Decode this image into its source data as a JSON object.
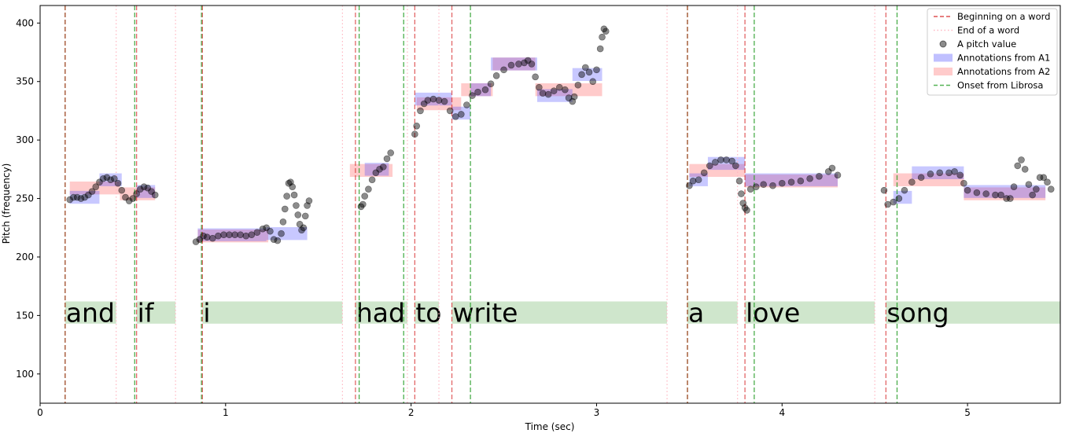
{
  "chart_data": {
    "type": "scatter",
    "xlabel": "Time (sec)",
    "ylabel": "Pitch (frequency)",
    "xlim": [
      0,
      5.5
    ],
    "ylim": [
      75,
      415
    ],
    "xticks": [
      0,
      1,
      2,
      3,
      4,
      5
    ],
    "yticks": [
      100,
      150,
      200,
      250,
      300,
      350,
      400
    ],
    "grid": false,
    "legend_position": "top-right",
    "legend": [
      {
        "label": "Beginning on a word",
        "kind": "dashed-line",
        "color": "#d62728"
      },
      {
        "label": "End of a word",
        "kind": "dotted-line",
        "color": "#ffb6c1"
      },
      {
        "label": "A pitch value",
        "kind": "marker",
        "color": "#000000"
      },
      {
        "label": "Annotations from A1",
        "kind": "patch",
        "color": "#4a4aff"
      },
      {
        "label": "Annotations from A2",
        "kind": "patch",
        "color": "#ff6b6b"
      },
      {
        "label": "Onset from Librosa",
        "kind": "dashed-line",
        "color": "#2ca02c"
      }
    ],
    "word_beginnings": [
      0.135,
      0.52,
      0.875,
      1.7,
      2.02,
      2.22,
      3.49,
      3.8,
      4.56
    ],
    "word_ends": [
      0.41,
      0.73,
      1.63,
      1.98,
      2.15,
      3.38,
      3.76,
      4.5
    ],
    "librosa_onsets": [
      0.135,
      0.51,
      0.87,
      1.72,
      1.96,
      2.32,
      3.49,
      3.85,
      4.62
    ],
    "words": [
      {
        "text": "and",
        "start": 0.135,
        "end": 0.41
      },
      {
        "text": "if",
        "start": 0.52,
        "end": 0.73
      },
      {
        "text": "i",
        "start": 0.875,
        "end": 1.63
      },
      {
        "text": "had",
        "start": 1.7,
        "end": 1.98
      },
      {
        "text": "to",
        "start": 2.02,
        "end": 2.15
      },
      {
        "text": "write",
        "start": 2.22,
        "end": 3.38
      },
      {
        "text": "a",
        "start": 3.49,
        "end": 3.76
      },
      {
        "text": "love",
        "start": 3.8,
        "end": 4.5
      },
      {
        "text": "song",
        "start": 4.56,
        "end": 5.5
      }
    ],
    "word_band_range": [
      143,
      162
    ],
    "annotations_a1": [
      {
        "x0": 0.16,
        "x1": 0.32,
        "y": 251
      },
      {
        "x0": 0.32,
        "x1": 0.44,
        "y": 266
      },
      {
        "x0": 0.52,
        "x1": 0.62,
        "y": 256
      },
      {
        "x0": 0.85,
        "x1": 1.22,
        "y": 219
      },
      {
        "x0": 1.22,
        "x1": 1.44,
        "y": 220
      },
      {
        "x0": 1.75,
        "x1": 1.88,
        "y": 275
      },
      {
        "x0": 2.02,
        "x1": 2.22,
        "y": 335
      },
      {
        "x0": 2.22,
        "x1": 2.32,
        "y": 323
      },
      {
        "x0": 2.32,
        "x1": 2.43,
        "y": 343
      },
      {
        "x0": 2.43,
        "x1": 2.68,
        "y": 365
      },
      {
        "x0": 2.68,
        "x1": 2.87,
        "y": 338
      },
      {
        "x0": 2.87,
        "x1": 3.03,
        "y": 356
      },
      {
        "x0": 3.5,
        "x1": 3.6,
        "y": 266
      },
      {
        "x0": 3.6,
        "x1": 3.8,
        "y": 280
      },
      {
        "x0": 3.8,
        "x1": 4.3,
        "y": 266
      },
      {
        "x0": 4.6,
        "x1": 4.7,
        "y": 251
      },
      {
        "x0": 4.7,
        "x1": 4.98,
        "y": 272
      },
      {
        "x0": 4.98,
        "x1": 5.42,
        "y": 256
      }
    ],
    "annotations_a2": [
      {
        "x0": 0.16,
        "x1": 0.43,
        "y": 259
      },
      {
        "x0": 0.43,
        "x1": 0.62,
        "y": 254
      },
      {
        "x0": 0.85,
        "x1": 1.23,
        "y": 218
      },
      {
        "x0": 1.67,
        "x1": 1.9,
        "y": 274
      },
      {
        "x0": 2.03,
        "x1": 2.27,
        "y": 331
      },
      {
        "x0": 2.27,
        "x1": 2.44,
        "y": 343
      },
      {
        "x0": 2.44,
        "x1": 2.67,
        "y": 365
      },
      {
        "x0": 2.67,
        "x1": 3.03,
        "y": 343
      },
      {
        "x0": 3.5,
        "x1": 3.8,
        "y": 274
      },
      {
        "x0": 3.8,
        "x1": 4.3,
        "y": 265
      },
      {
        "x0": 4.6,
        "x1": 4.98,
        "y": 266
      },
      {
        "x0": 4.98,
        "x1": 5.42,
        "y": 254
      }
    ],
    "pitch_points": [
      [
        0.16,
        249
      ],
      [
        0.18,
        251
      ],
      [
        0.2,
        251
      ],
      [
        0.22,
        250
      ],
      [
        0.24,
        251
      ],
      [
        0.26,
        253
      ],
      [
        0.28,
        256
      ],
      [
        0.3,
        260
      ],
      [
        0.32,
        264
      ],
      [
        0.34,
        267
      ],
      [
        0.36,
        268
      ],
      [
        0.38,
        266
      ],
      [
        0.4,
        267
      ],
      [
        0.42,
        263
      ],
      [
        0.44,
        257
      ],
      [
        0.46,
        251
      ],
      [
        0.48,
        248
      ],
      [
        0.5,
        250
      ],
      [
        0.52,
        254
      ],
      [
        0.54,
        258
      ],
      [
        0.56,
        260
      ],
      [
        0.58,
        259
      ],
      [
        0.6,
        256
      ],
      [
        0.62,
        253
      ],
      [
        0.84,
        213
      ],
      [
        0.86,
        215
      ],
      [
        0.88,
        218
      ],
      [
        0.9,
        217
      ],
      [
        0.93,
        216
      ],
      [
        0.96,
        218
      ],
      [
        0.99,
        219
      ],
      [
        1.02,
        219
      ],
      [
        1.05,
        219
      ],
      [
        1.08,
        219
      ],
      [
        1.11,
        218
      ],
      [
        1.14,
        219
      ],
      [
        1.17,
        221
      ],
      [
        1.2,
        224
      ],
      [
        1.22,
        225
      ],
      [
        1.24,
        222
      ],
      [
        1.26,
        215
      ],
      [
        1.28,
        214
      ],
      [
        1.3,
        220
      ],
      [
        1.31,
        230
      ],
      [
        1.32,
        241
      ],
      [
        1.33,
        252
      ],
      [
        1.34,
        263
      ],
      [
        1.35,
        264
      ],
      [
        1.36,
        260
      ],
      [
        1.37,
        253
      ],
      [
        1.38,
        244
      ],
      [
        1.39,
        236
      ],
      [
        1.4,
        228
      ],
      [
        1.41,
        223
      ],
      [
        1.42,
        225
      ],
      [
        1.43,
        235
      ],
      [
        1.44,
        244
      ],
      [
        1.45,
        248
      ],
      [
        1.73,
        243
      ],
      [
        1.74,
        245
      ],
      [
        1.75,
        252
      ],
      [
        1.77,
        258
      ],
      [
        1.79,
        266
      ],
      [
        1.81,
        272
      ],
      [
        1.83,
        275
      ],
      [
        1.85,
        277
      ],
      [
        1.87,
        284
      ],
      [
        1.89,
        289
      ],
      [
        2.02,
        305
      ],
      [
        2.03,
        312
      ],
      [
        2.05,
        325
      ],
      [
        2.07,
        331
      ],
      [
        2.09,
        334
      ],
      [
        2.12,
        335
      ],
      [
        2.15,
        334
      ],
      [
        2.18,
        333
      ],
      [
        2.21,
        325
      ],
      [
        2.24,
        320
      ],
      [
        2.27,
        322
      ],
      [
        2.3,
        330
      ],
      [
        2.33,
        338
      ],
      [
        2.36,
        341
      ],
      [
        2.4,
        343
      ],
      [
        2.43,
        348
      ],
      [
        2.46,
        355
      ],
      [
        2.5,
        360
      ],
      [
        2.54,
        364
      ],
      [
        2.58,
        365
      ],
      [
        2.61,
        366
      ],
      [
        2.63,
        368
      ],
      [
        2.65,
        365
      ],
      [
        2.67,
        354
      ],
      [
        2.69,
        345
      ],
      [
        2.71,
        340
      ],
      [
        2.74,
        339
      ],
      [
        2.77,
        342
      ],
      [
        2.8,
        345
      ],
      [
        2.83,
        343
      ],
      [
        2.85,
        336
      ],
      [
        2.87,
        333
      ],
      [
        2.88,
        337
      ],
      [
        2.9,
        347
      ],
      [
        2.92,
        356
      ],
      [
        2.94,
        362
      ],
      [
        2.96,
        358
      ],
      [
        2.98,
        350
      ],
      [
        3.0,
        360
      ],
      [
        3.02,
        378
      ],
      [
        3.03,
        388
      ],
      [
        3.04,
        395
      ],
      [
        3.05,
        393
      ],
      [
        3.5,
        261
      ],
      [
        3.52,
        265
      ],
      [
        3.55,
        266
      ],
      [
        3.58,
        272
      ],
      [
        3.61,
        278
      ],
      [
        3.64,
        281
      ],
      [
        3.67,
        283
      ],
      [
        3.7,
        283
      ],
      [
        3.73,
        282
      ],
      [
        3.75,
        278
      ],
      [
        3.77,
        265
      ],
      [
        3.78,
        254
      ],
      [
        3.79,
        246
      ],
      [
        3.8,
        242
      ],
      [
        3.81,
        240
      ],
      [
        3.83,
        258
      ],
      [
        3.86,
        260
      ],
      [
        3.9,
        262
      ],
      [
        3.95,
        261
      ],
      [
        4.0,
        263
      ],
      [
        4.05,
        264
      ],
      [
        4.1,
        265
      ],
      [
        4.15,
        267
      ],
      [
        4.2,
        269
      ],
      [
        4.25,
        273
      ],
      [
        4.27,
        276
      ],
      [
        4.3,
        270
      ],
      [
        4.55,
        257
      ],
      [
        4.57,
        245
      ],
      [
        4.6,
        247
      ],
      [
        4.63,
        250
      ],
      [
        4.66,
        257
      ],
      [
        4.7,
        264
      ],
      [
        4.75,
        268
      ],
      [
        4.8,
        271
      ],
      [
        4.85,
        272
      ],
      [
        4.9,
        272
      ],
      [
        4.93,
        273
      ],
      [
        4.96,
        270
      ],
      [
        4.98,
        263
      ],
      [
        5.0,
        257
      ],
      [
        5.05,
        255
      ],
      [
        5.1,
        254
      ],
      [
        5.15,
        253
      ],
      [
        5.18,
        253
      ],
      [
        5.21,
        250
      ],
      [
        5.23,
        250
      ],
      [
        5.25,
        260
      ],
      [
        5.27,
        278
      ],
      [
        5.29,
        283
      ],
      [
        5.31,
        275
      ],
      [
        5.33,
        262
      ],
      [
        5.35,
        253
      ],
      [
        5.37,
        258
      ],
      [
        5.39,
        268
      ],
      [
        5.41,
        268
      ],
      [
        5.43,
        264
      ],
      [
        5.45,
        258
      ]
    ]
  }
}
